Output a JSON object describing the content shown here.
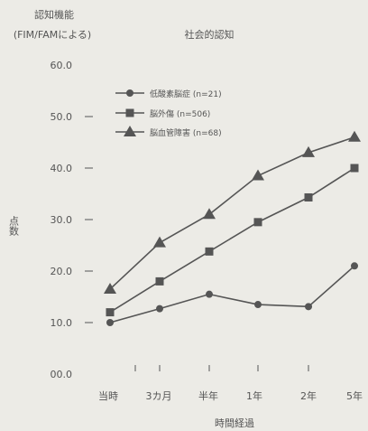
{
  "chart_data": {
    "type": "line",
    "title": "社会的認知",
    "ylabel_top": "認知機能",
    "ylabel_sub": "(FIM/FAMによる)",
    "ylabel_side": "点数",
    "xlabel": "時間経過",
    "categories": [
      "当時",
      "3カ月",
      "半年",
      "1年",
      "2年",
      "5年"
    ],
    "y_ticks": [
      "00.0",
      "10.0",
      "20.0",
      "30.0",
      "40.0",
      "50.0",
      "60.0"
    ],
    "ylim": [
      0,
      60
    ],
    "grid": false,
    "legend_position": "top-left",
    "series": [
      {
        "name": "低酸素脳症 (n=21)",
        "marker": "circle",
        "values": [
          10,
          12.7,
          15.5,
          13.5,
          13.1,
          21
        ]
      },
      {
        "name": "脳外傷 (n=506)",
        "marker": "square",
        "values": [
          12,
          18,
          23.8,
          29.5,
          34.3,
          40
        ]
      },
      {
        "name": "脳血管障害 (n=68)",
        "marker": "triangle",
        "values": [
          16.5,
          25.5,
          31,
          38.5,
          43,
          46
        ]
      }
    ],
    "colors": {
      "line": "#555555",
      "text": "#555555",
      "background": "#ecebe6"
    }
  }
}
